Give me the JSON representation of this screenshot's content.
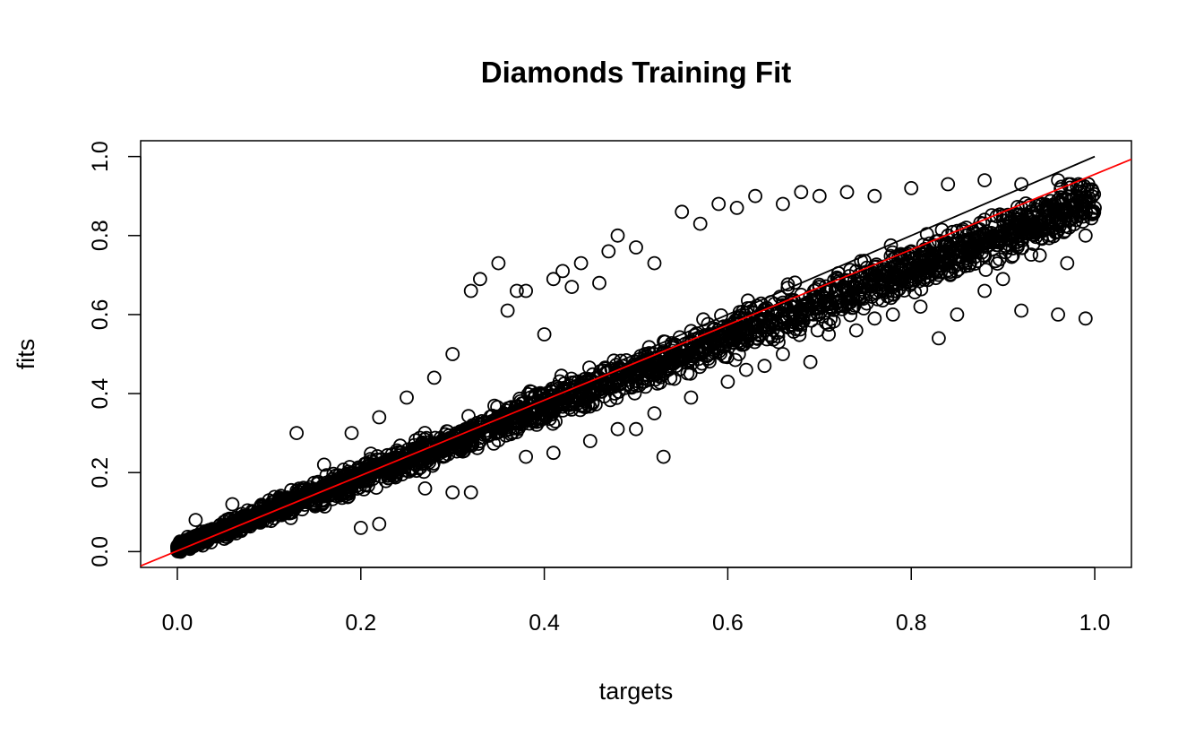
{
  "chart_data": {
    "type": "scatter",
    "title": "Diamonds Training Fit",
    "xlabel": "targets",
    "ylabel": "fits",
    "xlim": [
      -0.04,
      1.04
    ],
    "ylim": [
      -0.04,
      1.04
    ],
    "xticks": [
      0.0,
      0.2,
      0.4,
      0.6,
      0.8,
      1.0
    ],
    "yticks": [
      0.0,
      0.2,
      0.4,
      0.6,
      0.8,
      1.0
    ],
    "xtick_labels": [
      "0.0",
      "0.2",
      "0.4",
      "0.6",
      "0.8",
      "1.0"
    ],
    "ytick_labels": [
      "0.0",
      "0.2",
      "0.4",
      "0.6",
      "0.8",
      "1.0"
    ],
    "grid": false,
    "marker": "open-circle",
    "reference_line": {
      "x": [
        0.0,
        1.0
      ],
      "y": [
        0.0,
        1.0
      ],
      "color": "#000000"
    },
    "fit_line": {
      "intercept": 0.002,
      "slope": 0.953,
      "color": "#ff0000"
    },
    "series": [
      {
        "points": [
          [
            0.0,
            0.01
          ],
          [
            0.01,
            0.015
          ],
          [
            0.02,
            0.02
          ],
          [
            0.03,
            0.03
          ],
          [
            0.04,
            0.04
          ],
          [
            0.05,
            0.05
          ],
          [
            0.06,
            0.055
          ],
          [
            0.07,
            0.065
          ],
          [
            0.08,
            0.07
          ],
          [
            0.09,
            0.08
          ],
          [
            0.1,
            0.09
          ],
          [
            0.11,
            0.1
          ],
          [
            0.12,
            0.11
          ],
          [
            0.13,
            0.12
          ],
          [
            0.14,
            0.135
          ],
          [
            0.15,
            0.14
          ],
          [
            0.16,
            0.15
          ],
          [
            0.17,
            0.16
          ],
          [
            0.18,
            0.17
          ],
          [
            0.19,
            0.18
          ],
          [
            0.2,
            0.19
          ],
          [
            0.22,
            0.21
          ],
          [
            0.24,
            0.23
          ],
          [
            0.26,
            0.25
          ],
          [
            0.28,
            0.27
          ],
          [
            0.3,
            0.29
          ],
          [
            0.32,
            0.3
          ],
          [
            0.34,
            0.32
          ],
          [
            0.36,
            0.34
          ],
          [
            0.38,
            0.36
          ],
          [
            0.4,
            0.38
          ],
          [
            0.42,
            0.4
          ],
          [
            0.44,
            0.42
          ],
          [
            0.46,
            0.44
          ],
          [
            0.48,
            0.46
          ],
          [
            0.5,
            0.48
          ],
          [
            0.52,
            0.5
          ],
          [
            0.54,
            0.52
          ],
          [
            0.56,
            0.53
          ],
          [
            0.58,
            0.55
          ],
          [
            0.6,
            0.57
          ],
          [
            0.62,
            0.59
          ],
          [
            0.64,
            0.61
          ],
          [
            0.66,
            0.63
          ],
          [
            0.68,
            0.65
          ],
          [
            0.7,
            0.67
          ],
          [
            0.72,
            0.69
          ],
          [
            0.74,
            0.71
          ],
          [
            0.76,
            0.72
          ],
          [
            0.78,
            0.74
          ],
          [
            0.8,
            0.76
          ],
          [
            0.82,
            0.78
          ],
          [
            0.84,
            0.8
          ],
          [
            0.86,
            0.82
          ],
          [
            0.88,
            0.84
          ],
          [
            0.9,
            0.85
          ],
          [
            0.92,
            0.87
          ],
          [
            0.94,
            0.88
          ],
          [
            0.96,
            0.89
          ],
          [
            0.98,
            0.9
          ],
          [
            1.0,
            0.87
          ],
          [
            0.02,
            0.08
          ],
          [
            0.06,
            0.12
          ],
          [
            0.1,
            0.13
          ],
          [
            0.13,
            0.3
          ],
          [
            0.16,
            0.22
          ],
          [
            0.19,
            0.3
          ],
          [
            0.22,
            0.34
          ],
          [
            0.25,
            0.39
          ],
          [
            0.28,
            0.44
          ],
          [
            0.3,
            0.5
          ],
          [
            0.32,
            0.66
          ],
          [
            0.33,
            0.69
          ],
          [
            0.35,
            0.73
          ],
          [
            0.36,
            0.61
          ],
          [
            0.37,
            0.66
          ],
          [
            0.38,
            0.66
          ],
          [
            0.4,
            0.55
          ],
          [
            0.41,
            0.69
          ],
          [
            0.42,
            0.71
          ],
          [
            0.43,
            0.67
          ],
          [
            0.44,
            0.73
          ],
          [
            0.46,
            0.68
          ],
          [
            0.47,
            0.76
          ],
          [
            0.48,
            0.8
          ],
          [
            0.5,
            0.77
          ],
          [
            0.52,
            0.73
          ],
          [
            0.55,
            0.86
          ],
          [
            0.57,
            0.83
          ],
          [
            0.59,
            0.88
          ],
          [
            0.61,
            0.87
          ],
          [
            0.63,
            0.9
          ],
          [
            0.66,
            0.88
          ],
          [
            0.68,
            0.91
          ],
          [
            0.7,
            0.9
          ],
          [
            0.73,
            0.91
          ],
          [
            0.76,
            0.9
          ],
          [
            0.8,
            0.92
          ],
          [
            0.84,
            0.93
          ],
          [
            0.88,
            0.94
          ],
          [
            0.92,
            0.93
          ],
          [
            0.96,
            0.94
          ],
          [
            0.2,
            0.06
          ],
          [
            0.22,
            0.07
          ],
          [
            0.27,
            0.16
          ],
          [
            0.3,
            0.15
          ],
          [
            0.32,
            0.15
          ],
          [
            0.38,
            0.24
          ],
          [
            0.41,
            0.25
          ],
          [
            0.45,
            0.28
          ],
          [
            0.48,
            0.31
          ],
          [
            0.5,
            0.31
          ],
          [
            0.52,
            0.35
          ],
          [
            0.53,
            0.24
          ],
          [
            0.56,
            0.39
          ],
          [
            0.6,
            0.43
          ],
          [
            0.62,
            0.46
          ],
          [
            0.64,
            0.47
          ],
          [
            0.66,
            0.5
          ],
          [
            0.69,
            0.48
          ],
          [
            0.71,
            0.55
          ],
          [
            0.74,
            0.56
          ],
          [
            0.76,
            0.59
          ],
          [
            0.78,
            0.6
          ],
          [
            0.81,
            0.62
          ],
          [
            0.83,
            0.54
          ],
          [
            0.85,
            0.6
          ],
          [
            0.88,
            0.66
          ],
          [
            0.9,
            0.69
          ],
          [
            0.92,
            0.61
          ],
          [
            0.96,
            0.6
          ],
          [
            0.99,
            0.59
          ],
          [
            0.97,
            0.73
          ],
          [
            0.94,
            0.75
          ],
          [
            0.99,
            0.8
          ]
        ]
      }
    ]
  }
}
